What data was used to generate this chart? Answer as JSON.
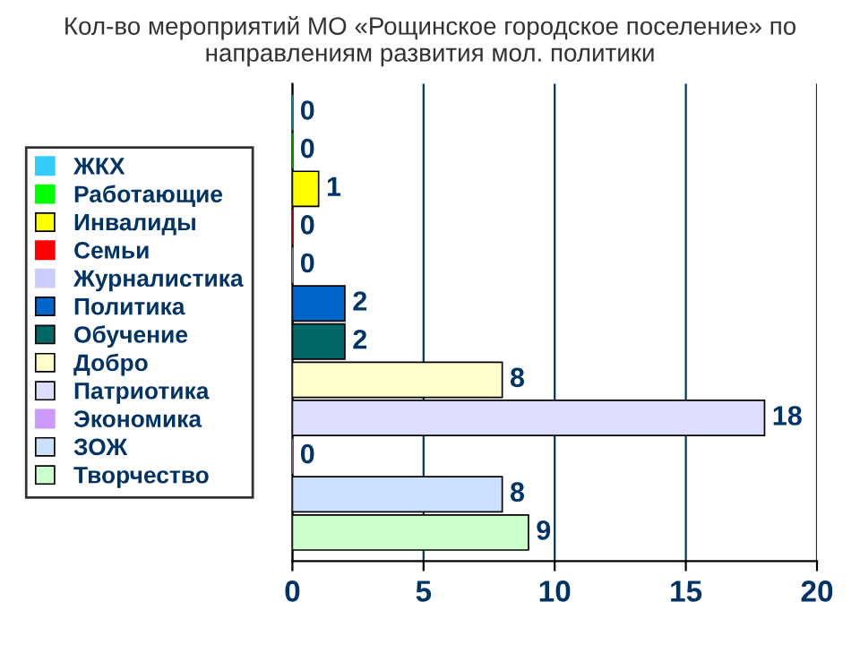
{
  "chart_data": {
    "type": "bar",
    "orientation": "horizontal",
    "title": "Кол-во мероприятий МО «Рощинское городское поселение» по направлениям развития мол. политики",
    "categories": [
      null
    ],
    "series": [
      {
        "name": "ЖКХ",
        "color": "#33ccff",
        "values": [
          0
        ]
      },
      {
        "name": "Работающие",
        "color": "#00ff00",
        "values": [
          0
        ]
      },
      {
        "name": "Инвалиды",
        "color": "#ffff00",
        "values": [
          1
        ]
      },
      {
        "name": "Семьи",
        "color": "#ff0000",
        "values": [
          0
        ]
      },
      {
        "name": "Журналистика",
        "color": "#ccccff",
        "values": [
          0
        ]
      },
      {
        "name": "Политика",
        "color": "#0066cc",
        "values": [
          2
        ]
      },
      {
        "name": "Обучение",
        "color": "#006666",
        "values": [
          2
        ]
      },
      {
        "name": "Добро",
        "color": "#ffffcc",
        "values": [
          8
        ]
      },
      {
        "name": "Патриотика",
        "color": "#ddddff",
        "values": [
          18
        ]
      },
      {
        "name": "Экономика",
        "color": "#cc99ff",
        "values": [
          0
        ]
      },
      {
        "name": "ЗОЖ",
        "color": "#cce0ff",
        "values": [
          8
        ]
      },
      {
        "name": "Творчество",
        "color": "#ccffcc",
        "values": [
          9
        ]
      }
    ],
    "xlim": [
      0,
      20
    ],
    "xticks": [
      0,
      5,
      10,
      15,
      20
    ],
    "grid": "x",
    "legend": "left",
    "data_labels": true
  }
}
